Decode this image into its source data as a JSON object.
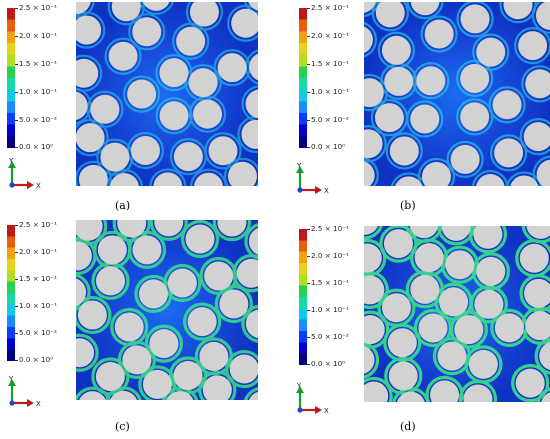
{
  "colorbar": {
    "colors": [
      "#000080",
      "#0000cd",
      "#0a3cff",
      "#1a8cff",
      "#16c8e6",
      "#16d9a8",
      "#28d050",
      "#aee021",
      "#e6d21a",
      "#f0a216",
      "#e65f10",
      "#c01816"
    ],
    "ticks": [
      "2.5 × 10⁻¹",
      "2.0 × 10⁻¹",
      "1.5 × 10⁻¹",
      "1.0 × 10⁻¹",
      "5.0 × 10⁻²",
      "0.0 × 10⁰"
    ]
  },
  "axes": {
    "y": "Y",
    "x": "X"
  },
  "panels": [
    {
      "label": "(a)"
    },
    {
      "label": "(b)"
    },
    {
      "label": "(c)"
    },
    {
      "label": "(d)"
    }
  ],
  "fiber_color": "#d2d2d2",
  "matrix_color": "#1a52d8"
}
